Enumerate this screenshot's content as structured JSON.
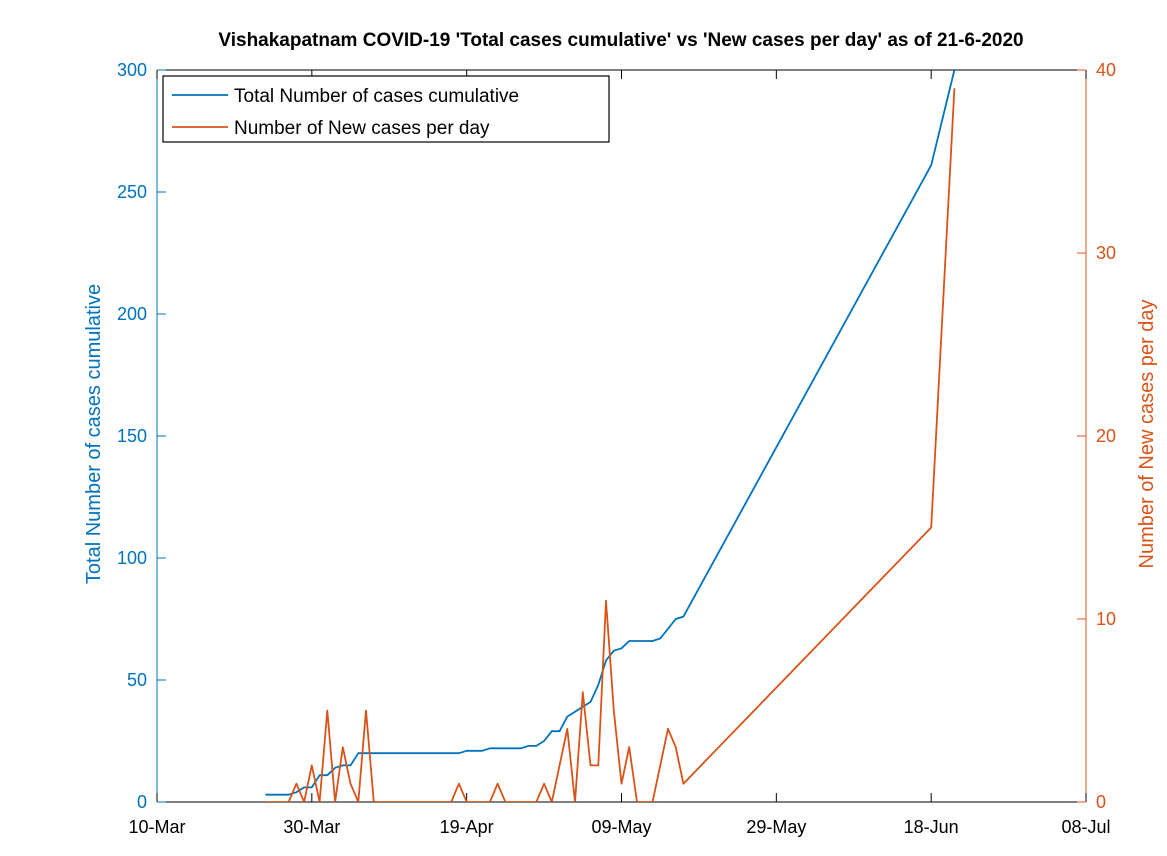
{
  "chart_data": {
    "type": "line",
    "title": "Vishakapatnam COVID-19 'Total cases cumulative' vs 'New cases per day' as of 21-6-2020",
    "xlabel": "",
    "x_tick_labels": [
      "10-Mar",
      "30-Mar",
      "19-Apr",
      "09-May",
      "29-May",
      "18-Jun",
      "08-Jul"
    ],
    "x_tick_dates": [
      "2020-03-10",
      "2020-03-30",
      "2020-04-19",
      "2020-05-09",
      "2020-05-29",
      "2020-06-18",
      "2020-07-08"
    ],
    "xlim": [
      "2020-03-10",
      "2020-07-08"
    ],
    "grid": false,
    "legend_position": "top-left",
    "y_left": {
      "label": "Total Number of cases cumulative",
      "ylim": [
        0,
        300
      ],
      "ticks": [
        0,
        50,
        100,
        150,
        200,
        250,
        300
      ],
      "color": "#0072BD"
    },
    "y_right": {
      "label": "Number of New cases per day",
      "ylim": [
        0,
        40
      ],
      "ticks": [
        0,
        10,
        20,
        30,
        40
      ],
      "color": "#D95319"
    },
    "series": [
      {
        "name": "Total Number of cases cumulative",
        "axis": "left",
        "color": "#0072BD",
        "points": [
          [
            "2020-03-24",
            3
          ],
          [
            "2020-03-26",
            3
          ],
          [
            "2020-03-27",
            3
          ],
          [
            "2020-03-28",
            4
          ],
          [
            "2020-03-29",
            6
          ],
          [
            "2020-03-30",
            6
          ],
          [
            "2020-03-31",
            11
          ],
          [
            "2020-04-01",
            11
          ],
          [
            "2020-04-02",
            14
          ],
          [
            "2020-04-03",
            15
          ],
          [
            "2020-04-04",
            15
          ],
          [
            "2020-04-05",
            20
          ],
          [
            "2020-04-06",
            20
          ],
          [
            "2020-04-10",
            20
          ],
          [
            "2020-04-15",
            20
          ],
          [
            "2020-04-18",
            20
          ],
          [
            "2020-04-19",
            21
          ],
          [
            "2020-04-21",
            21
          ],
          [
            "2020-04-22",
            22
          ],
          [
            "2020-04-26",
            22
          ],
          [
            "2020-04-27",
            23
          ],
          [
            "2020-04-28",
            23
          ],
          [
            "2020-04-29",
            25
          ],
          [
            "2020-04-30",
            29
          ],
          [
            "2020-05-01",
            29
          ],
          [
            "2020-05-02",
            35
          ],
          [
            "2020-05-03",
            37
          ],
          [
            "2020-05-04",
            39
          ],
          [
            "2020-05-05",
            41
          ],
          [
            "2020-05-06",
            48
          ],
          [
            "2020-05-07",
            58
          ],
          [
            "2020-05-08",
            62
          ],
          [
            "2020-05-09",
            63
          ],
          [
            "2020-05-10",
            66
          ],
          [
            "2020-05-11",
            66
          ],
          [
            "2020-05-13",
            66
          ],
          [
            "2020-05-14",
            67
          ],
          [
            "2020-05-15",
            71
          ],
          [
            "2020-05-16",
            75
          ],
          [
            "2020-05-17",
            76
          ],
          [
            "2020-06-18",
            261
          ],
          [
            "2020-06-21",
            300
          ]
        ]
      },
      {
        "name": "Number of New cases per day",
        "axis": "right",
        "color": "#D95319",
        "points": [
          [
            "2020-03-24",
            0
          ],
          [
            "2020-03-27",
            0
          ],
          [
            "2020-03-28",
            1
          ],
          [
            "2020-03-29",
            0
          ],
          [
            "2020-03-30",
            2
          ],
          [
            "2020-03-31",
            0
          ],
          [
            "2020-04-01",
            5
          ],
          [
            "2020-04-02",
            0
          ],
          [
            "2020-04-03",
            3
          ],
          [
            "2020-04-04",
            1
          ],
          [
            "2020-04-05",
            0
          ],
          [
            "2020-04-06",
            5
          ],
          [
            "2020-04-07",
            0
          ],
          [
            "2020-04-17",
            0
          ],
          [
            "2020-04-18",
            1
          ],
          [
            "2020-04-19",
            0
          ],
          [
            "2020-04-22",
            0
          ],
          [
            "2020-04-23",
            1
          ],
          [
            "2020-04-24",
            0
          ],
          [
            "2020-04-28",
            0
          ],
          [
            "2020-04-29",
            1
          ],
          [
            "2020-04-30",
            0
          ],
          [
            "2020-05-02",
            4
          ],
          [
            "2020-05-03",
            0
          ],
          [
            "2020-05-04",
            6
          ],
          [
            "2020-05-05",
            2
          ],
          [
            "2020-05-06",
            2
          ],
          [
            "2020-05-07",
            11
          ],
          [
            "2020-05-08",
            5
          ],
          [
            "2020-05-09",
            1
          ],
          [
            "2020-05-10",
            3
          ],
          [
            "2020-05-11",
            0
          ],
          [
            "2020-05-13",
            0
          ],
          [
            "2020-05-15",
            4
          ],
          [
            "2020-05-16",
            3
          ],
          [
            "2020-05-17",
            1
          ],
          [
            "2020-06-18",
            15
          ],
          [
            "2020-06-21",
            39
          ]
        ]
      }
    ]
  }
}
